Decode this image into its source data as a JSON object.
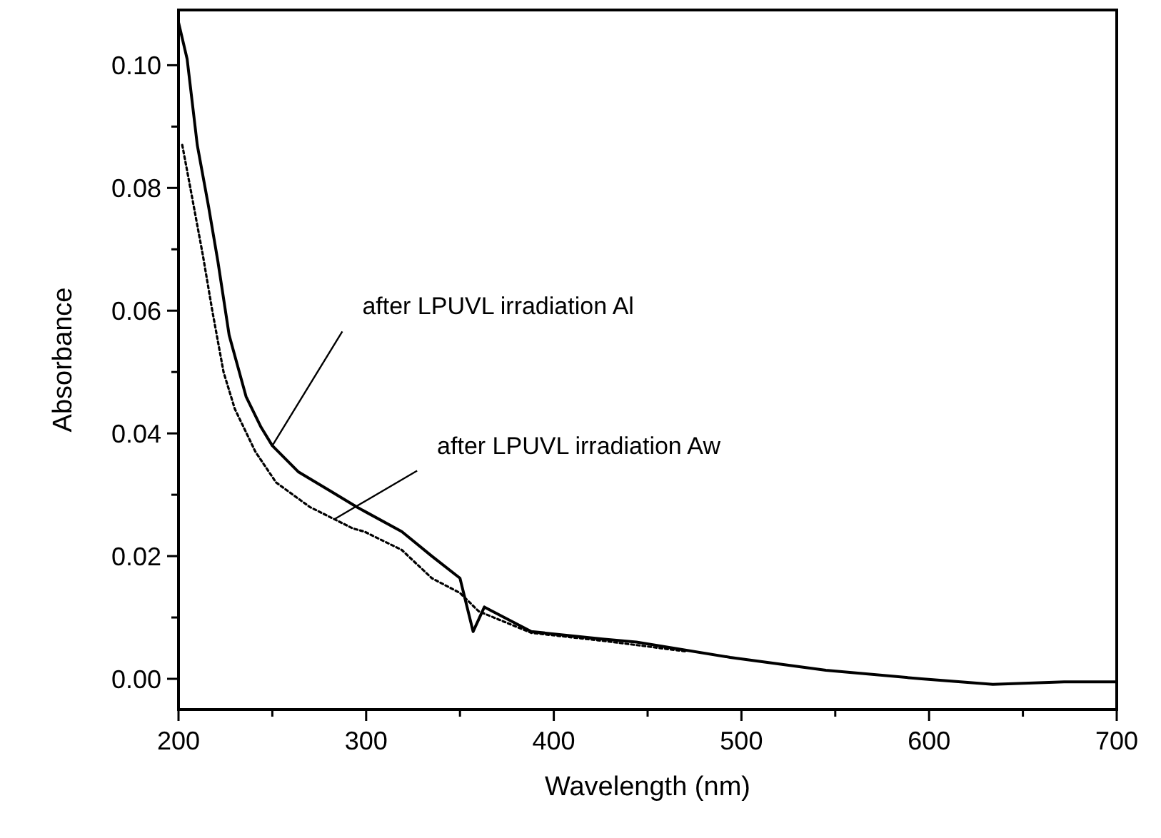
{
  "chart_data": {
    "type": "line",
    "xlabel": "Wavelength (nm)",
    "ylabel": "Absorbance",
    "xlim": [
      200,
      700
    ],
    "xticks": [
      200,
      {
        "value": 250,
        "label": null
      },
      300,
      {
        "value": 350,
        "label": null
      },
      400,
      {
        "value": 450,
        "label": null
      },
      500,
      {
        "value": 550,
        "label": null
      },
      600,
      {
        "value": 650,
        "label": null
      },
      700
    ],
    "ylim": [
      -0.005,
      0.109
    ],
    "yticks": [
      {
        "value": 0,
        "label": "0.00"
      },
      {
        "value": 0.01,
        "label": null
      },
      0.02,
      {
        "value": 0.03,
        "label": null
      },
      0.04,
      {
        "value": 0.05,
        "label": null
      },
      0.06,
      {
        "value": 0.07,
        "label": null
      },
      0.08,
      {
        "value": 0.09,
        "label": null
      },
      {
        "value": 0.1,
        "label": "0.10"
      }
    ],
    "grid": false,
    "marker": "none",
    "series": [
      {
        "color": "#000000",
        "line_style": "solid",
        "x": [
          200,
          204.6,
          210,
          216,
          221,
          227,
          236,
          244,
          250,
          264,
          281,
          295,
          319,
          335,
          350,
          357,
          363,
          388,
          426,
          444,
          494,
          545,
          596,
          634,
          672,
          700
        ],
        "values": [
          0.107,
          0.101,
          0.087,
          0.077,
          0.068,
          0.056,
          0.046,
          0.041,
          0.038,
          0.0337,
          0.0306,
          0.028,
          0.024,
          0.02,
          0.0164,
          0.0077,
          0.0117,
          0.0077,
          0.0065,
          0.006,
          0.0035,
          0.0014,
          0,
          -0.0009,
          -0.0005,
          -0.0005
        ]
      },
      {
        "color": "#000000",
        "line_style": "dotted",
        "x": [
          202,
          205.7,
          213,
          218,
          224,
          230,
          241,
          252,
          270,
          293,
          299,
          319,
          335,
          350,
          360,
          388,
          426,
          470
        ],
        "values": [
          0.087,
          0.081,
          0.069,
          0.06,
          0.05,
          0.044,
          0.037,
          0.032,
          0.028,
          0.0245,
          0.024,
          0.021,
          0.0164,
          0.014,
          0.011,
          0.0075,
          0.0062,
          0.0045
        ]
      }
    ],
    "annotations": [
      {
        "text": "after LPUVL irradiation Al",
        "x": 250,
        "y": 0.038
      },
      {
        "text": "after LPUVL irradiation Aw",
        "x": 283,
        "y": 0.026
      }
    ]
  }
}
